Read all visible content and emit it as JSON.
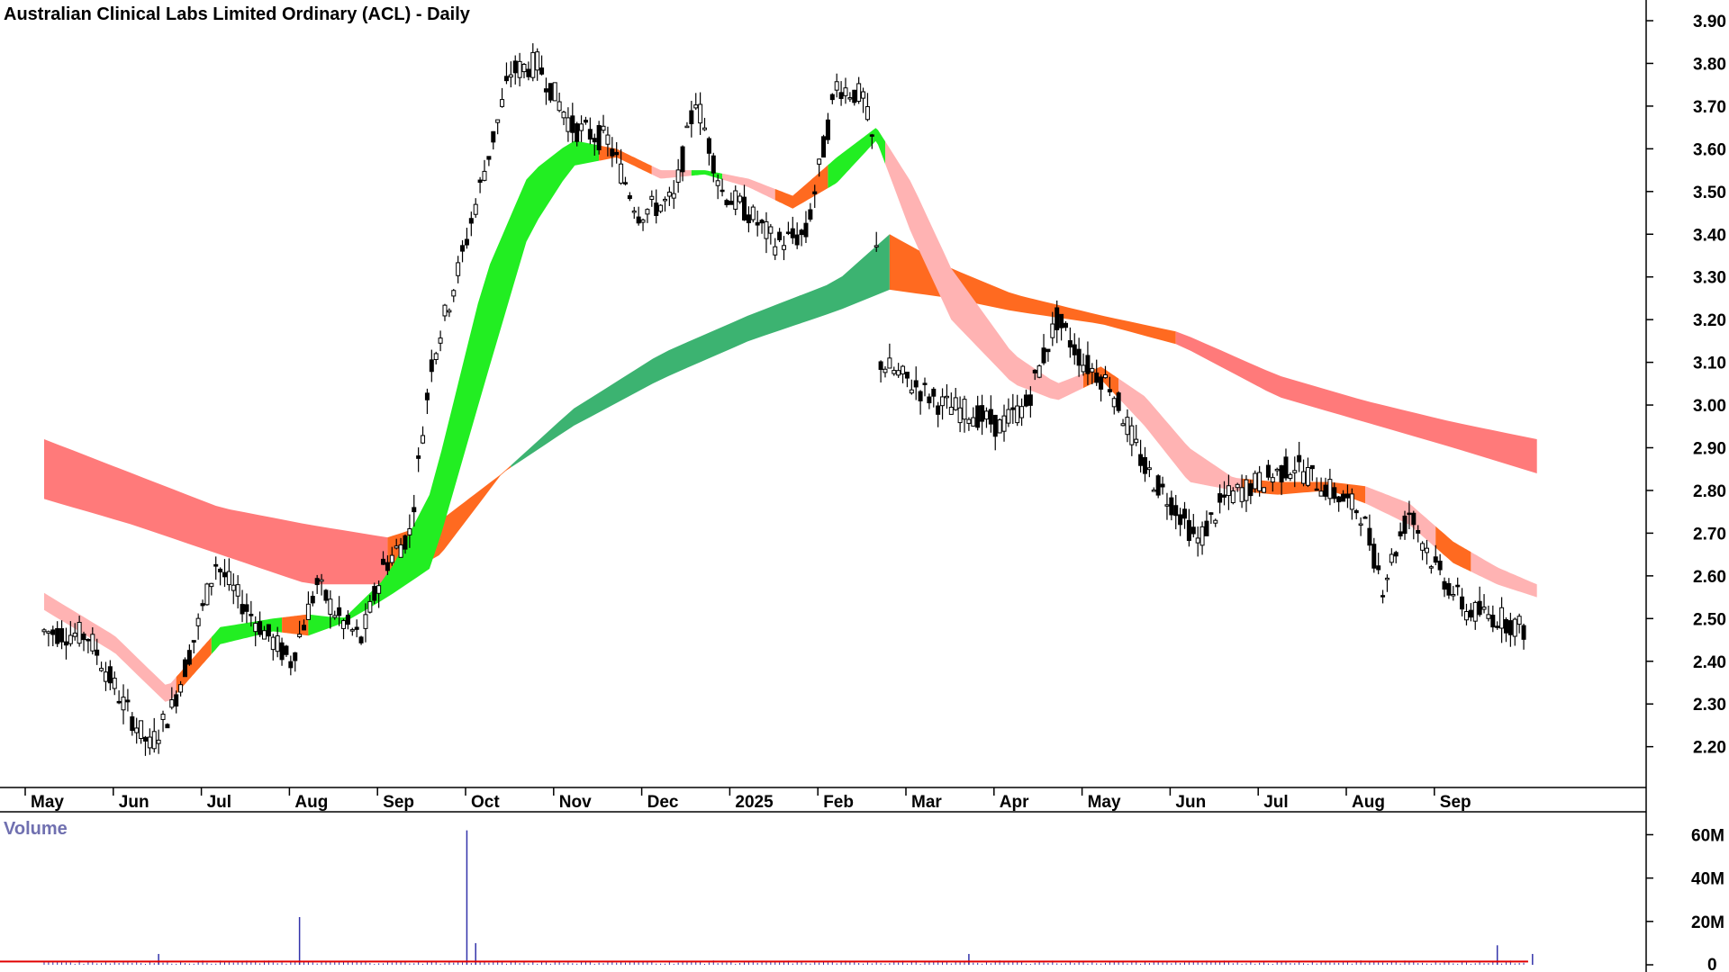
{
  "chart_data": {
    "type": "candlestick",
    "title": "Australian Clinical Labs Limited Ordinary (ACL) - Daily",
    "price_axis": {
      "ticks": [
        "3.90",
        "3.80",
        "3.70",
        "3.60",
        "3.50",
        "3.40",
        "3.30",
        "3.20",
        "3.10",
        "3.00",
        "2.90",
        "2.80",
        "2.70",
        "2.60",
        "2.50",
        "2.40",
        "2.30",
        "2.20"
      ],
      "range": [
        2.13,
        3.93
      ]
    },
    "x_axis": {
      "labels": [
        "May",
        "Jun",
        "Jul",
        "Aug",
        "Sep",
        "Oct",
        "Nov",
        "Dec",
        "2025",
        "Feb",
        "Mar",
        "Apr",
        "May",
        "Jun",
        "Jul",
        "Aug",
        "Sep"
      ]
    },
    "price_path": [
      {
        "m": 0.0,
        "p": 2.47
      },
      {
        "m": 0.5,
        "p": 2.46
      },
      {
        "m": 0.9,
        "p": 2.3
      },
      {
        "m": 1.2,
        "p": 2.2
      },
      {
        "m": 1.45,
        "p": 2.29
      },
      {
        "m": 1.7,
        "p": 2.45
      },
      {
        "m": 1.95,
        "p": 2.63
      },
      {
        "m": 2.2,
        "p": 2.55
      },
      {
        "m": 2.5,
        "p": 2.47
      },
      {
        "m": 2.8,
        "p": 2.4
      },
      {
        "m": 3.1,
        "p": 2.58
      },
      {
        "m": 3.35,
        "p": 2.5
      },
      {
        "m": 3.6,
        "p": 2.45
      },
      {
        "m": 3.85,
        "p": 2.62
      },
      {
        "m": 4.15,
        "p": 2.7
      },
      {
        "m": 4.4,
        "p": 3.1
      },
      {
        "m": 4.75,
        "p": 3.35
      },
      {
        "m": 5.0,
        "p": 3.55
      },
      {
        "m": 5.3,
        "p": 3.78
      },
      {
        "m": 5.6,
        "p": 3.8
      },
      {
        "m": 6.0,
        "p": 3.65
      },
      {
        "m": 6.4,
        "p": 3.62
      },
      {
        "m": 6.75,
        "p": 3.45
      },
      {
        "m": 7.15,
        "p": 3.48
      },
      {
        "m": 7.4,
        "p": 3.72
      },
      {
        "m": 7.7,
        "p": 3.5
      },
      {
        "m": 8.0,
        "p": 3.45
      },
      {
        "m": 8.3,
        "p": 3.38
      },
      {
        "m": 8.65,
        "p": 3.4
      },
      {
        "m": 9.0,
        "p": 3.75
      },
      {
        "m": 9.3,
        "p": 3.72
      },
      {
        "m": 9.4,
        "p": 3.62
      },
      {
        "m": 9.5,
        "p": 3.1
      },
      {
        "m": 9.85,
        "p": 3.05
      },
      {
        "m": 10.2,
        "p": 3.0
      },
      {
        "m": 10.55,
        "p": 2.98
      },
      {
        "m": 10.85,
        "p": 2.95
      },
      {
        "m": 11.15,
        "p": 3.0
      },
      {
        "m": 11.5,
        "p": 3.2
      },
      {
        "m": 11.8,
        "p": 3.1
      },
      {
        "m": 12.1,
        "p": 3.05
      },
      {
        "m": 12.5,
        "p": 2.85
      },
      {
        "m": 12.85,
        "p": 2.76
      },
      {
        "m": 13.1,
        "p": 2.68
      },
      {
        "m": 13.4,
        "p": 2.78
      },
      {
        "m": 13.8,
        "p": 2.82
      },
      {
        "m": 14.2,
        "p": 2.86
      },
      {
        "m": 14.6,
        "p": 2.8
      },
      {
        "m": 14.95,
        "p": 2.75
      },
      {
        "m": 15.2,
        "p": 2.58
      },
      {
        "m": 15.5,
        "p": 2.75
      },
      {
        "m": 15.8,
        "p": 2.62
      },
      {
        "m": 16.15,
        "p": 2.52
      },
      {
        "m": 16.55,
        "p": 2.5
      },
      {
        "m": 16.85,
        "p": 2.47
      }
    ],
    "ribbons": [
      {
        "name": "long-term-ribbon",
        "segments": [
          {
            "from": 0,
            "to": 3.9,
            "color": "#ff7a7a"
          },
          {
            "from": 3.9,
            "to": 5.3,
            "color": "#ff6a20"
          },
          {
            "from": 5.3,
            "to": 9.6,
            "color": "#3cb371"
          },
          {
            "from": 9.6,
            "to": 12.85,
            "color": "#ff6a20"
          },
          {
            "from": 12.85,
            "to": 17.2,
            "color": "#ff7a7a"
          }
        ],
        "upper": [
          {
            "m": 0,
            "p": 2.92
          },
          {
            "m": 1,
            "p": 2.84
          },
          {
            "m": 2,
            "p": 2.76
          },
          {
            "m": 3,
            "p": 2.72
          },
          {
            "m": 3.9,
            "p": 2.69
          },
          {
            "m": 4.5,
            "p": 2.73
          },
          {
            "m": 5.2,
            "p": 2.84
          },
          {
            "m": 6.0,
            "p": 2.99
          },
          {
            "m": 7.0,
            "p": 3.12
          },
          {
            "m": 8.0,
            "p": 3.21
          },
          {
            "m": 9.0,
            "p": 3.29
          },
          {
            "m": 9.6,
            "p": 3.4
          },
          {
            "m": 10.3,
            "p": 3.32
          },
          {
            "m": 11.0,
            "p": 3.26
          },
          {
            "m": 12.0,
            "p": 3.21
          },
          {
            "m": 12.9,
            "p": 3.17
          },
          {
            "m": 14.0,
            "p": 3.07
          },
          {
            "m": 15.0,
            "p": 3.01
          },
          {
            "m": 16.0,
            "p": 2.96
          },
          {
            "m": 16.95,
            "p": 2.92
          }
        ],
        "lower": [
          {
            "m": 0,
            "p": 2.78
          },
          {
            "m": 1,
            "p": 2.72
          },
          {
            "m": 2,
            "p": 2.65
          },
          {
            "m": 3,
            "p": 2.58
          },
          {
            "m": 3.9,
            "p": 2.58
          },
          {
            "m": 4.5,
            "p": 2.65
          },
          {
            "m": 5.2,
            "p": 2.84
          },
          {
            "m": 6.0,
            "p": 2.95
          },
          {
            "m": 7.0,
            "p": 3.06
          },
          {
            "m": 8.0,
            "p": 3.15
          },
          {
            "m": 9.0,
            "p": 3.22
          },
          {
            "m": 9.6,
            "p": 3.27
          },
          {
            "m": 10.3,
            "p": 3.25
          },
          {
            "m": 11.0,
            "p": 3.22
          },
          {
            "m": 12.0,
            "p": 3.19
          },
          {
            "m": 12.9,
            "p": 3.14
          },
          {
            "m": 14.0,
            "p": 3.02
          },
          {
            "m": 15.0,
            "p": 2.96
          },
          {
            "m": 16.0,
            "p": 2.9
          },
          {
            "m": 16.95,
            "p": 2.84
          }
        ]
      },
      {
        "name": "short-term-ribbon",
        "segments": [
          {
            "from": 0,
            "to": 1.5,
            "color": "#ffb3b3"
          },
          {
            "from": 1.5,
            "to": 1.9,
            "color": "#ff6a20"
          },
          {
            "from": 1.9,
            "to": 2.7,
            "color": "#22ee22"
          },
          {
            "from": 2.7,
            "to": 3.0,
            "color": "#ff6a20"
          },
          {
            "from": 3.0,
            "to": 6.3,
            "color": "#22ee22"
          },
          {
            "from": 6.3,
            "to": 6.9,
            "color": "#ff6a20"
          },
          {
            "from": 6.9,
            "to": 7.35,
            "color": "#ffb3b3"
          },
          {
            "from": 7.35,
            "to": 7.7,
            "color": "#22ee22"
          },
          {
            "from": 7.7,
            "to": 8.3,
            "color": "#ffb3b3"
          },
          {
            "from": 8.3,
            "to": 8.9,
            "color": "#ff6a20"
          },
          {
            "from": 8.9,
            "to": 9.55,
            "color": "#22ee22"
          },
          {
            "from": 9.55,
            "to": 11.8,
            "color": "#ffb3b3"
          },
          {
            "from": 11.8,
            "to": 12.2,
            "color": "#ff6a20"
          },
          {
            "from": 12.2,
            "to": 13.6,
            "color": "#ffb3b3"
          },
          {
            "from": 13.6,
            "to": 15.0,
            "color": "#ff6a20"
          },
          {
            "from": 15.0,
            "to": 15.8,
            "color": "#ffb3b3"
          },
          {
            "from": 15.8,
            "to": 16.2,
            "color": "#ff6a20"
          },
          {
            "from": 16.2,
            "to": 17.2,
            "color": "#ffb3b3"
          }
        ],
        "upper": [
          {
            "m": 0,
            "p": 2.56
          },
          {
            "m": 0.8,
            "p": 2.46
          },
          {
            "m": 1.4,
            "p": 2.34
          },
          {
            "m": 2.0,
            "p": 2.48
          },
          {
            "m": 2.6,
            "p": 2.5
          },
          {
            "m": 3.0,
            "p": 2.51
          },
          {
            "m": 3.4,
            "p": 2.5
          },
          {
            "m": 3.9,
            "p": 2.6
          },
          {
            "m": 4.4,
            "p": 2.8
          },
          {
            "m": 5.0,
            "p": 3.3
          },
          {
            "m": 5.5,
            "p": 3.54
          },
          {
            "m": 6.0,
            "p": 3.62
          },
          {
            "m": 6.5,
            "p": 3.6
          },
          {
            "m": 7.0,
            "p": 3.55
          },
          {
            "m": 7.5,
            "p": 3.55
          },
          {
            "m": 8.0,
            "p": 3.53
          },
          {
            "m": 8.5,
            "p": 3.49
          },
          {
            "m": 9.0,
            "p": 3.58
          },
          {
            "m": 9.45,
            "p": 3.65
          },
          {
            "m": 9.85,
            "p": 3.52
          },
          {
            "m": 10.3,
            "p": 3.32
          },
          {
            "m": 11.0,
            "p": 3.12
          },
          {
            "m": 11.5,
            "p": 3.05
          },
          {
            "m": 12.0,
            "p": 3.09
          },
          {
            "m": 12.5,
            "p": 3.02
          },
          {
            "m": 13.0,
            "p": 2.9
          },
          {
            "m": 13.5,
            "p": 2.83
          },
          {
            "m": 14.0,
            "p": 2.82
          },
          {
            "m": 14.6,
            "p": 2.82
          },
          {
            "m": 15.0,
            "p": 2.81
          },
          {
            "m": 15.5,
            "p": 2.77
          },
          {
            "m": 16.0,
            "p": 2.68
          },
          {
            "m": 16.5,
            "p": 2.62
          },
          {
            "m": 16.95,
            "p": 2.58
          }
        ],
        "lower": [
          {
            "m": 0,
            "p": 2.52
          },
          {
            "m": 0.8,
            "p": 2.42
          },
          {
            "m": 1.4,
            "p": 2.3
          },
          {
            "m": 2.0,
            "p": 2.44
          },
          {
            "m": 2.6,
            "p": 2.47
          },
          {
            "m": 3.0,
            "p": 2.46
          },
          {
            "m": 3.4,
            "p": 2.49
          },
          {
            "m": 3.9,
            "p": 2.55
          },
          {
            "m": 4.4,
            "p": 2.62
          },
          {
            "m": 5.0,
            "p": 3.05
          },
          {
            "m": 5.5,
            "p": 3.4
          },
          {
            "m": 6.0,
            "p": 3.56
          },
          {
            "m": 6.5,
            "p": 3.58
          },
          {
            "m": 7.0,
            "p": 3.53
          },
          {
            "m": 7.5,
            "p": 3.54
          },
          {
            "m": 8.0,
            "p": 3.51
          },
          {
            "m": 8.5,
            "p": 3.46
          },
          {
            "m": 9.0,
            "p": 3.52
          },
          {
            "m": 9.45,
            "p": 3.62
          },
          {
            "m": 9.85,
            "p": 3.4
          },
          {
            "m": 10.3,
            "p": 3.2
          },
          {
            "m": 11.0,
            "p": 3.05
          },
          {
            "m": 11.5,
            "p": 3.01
          },
          {
            "m": 12.0,
            "p": 3.06
          },
          {
            "m": 12.5,
            "p": 2.95
          },
          {
            "m": 13.0,
            "p": 2.82
          },
          {
            "m": 13.5,
            "p": 2.8
          },
          {
            "m": 14.0,
            "p": 2.79
          },
          {
            "m": 14.6,
            "p": 2.8
          },
          {
            "m": 15.0,
            "p": 2.77
          },
          {
            "m": 15.5,
            "p": 2.72
          },
          {
            "m": 16.0,
            "p": 2.63
          },
          {
            "m": 16.5,
            "p": 2.58
          },
          {
            "m": 16.95,
            "p": 2.55
          }
        ]
      }
    ],
    "volume": {
      "label": "Volume",
      "ticks": [
        "60M",
        "40M",
        "20M",
        "0"
      ],
      "range": [
        0,
        66
      ],
      "spikes": [
        {
          "m": 1.3,
          "v": 5
        },
        {
          "m": 2.9,
          "v": 22
        },
        {
          "m": 4.8,
          "v": 62
        },
        {
          "m": 4.9,
          "v": 10
        },
        {
          "m": 10.5,
          "v": 5
        },
        {
          "m": 16.5,
          "v": 9
        },
        {
          "m": 16.9,
          "v": 5
        }
      ],
      "average_level": 1.5,
      "colors": {
        "bars": "#3333aa",
        "average": "#e00000"
      }
    },
    "colors": {
      "label_blue": "#7070b0",
      "candles": "#000000"
    }
  }
}
